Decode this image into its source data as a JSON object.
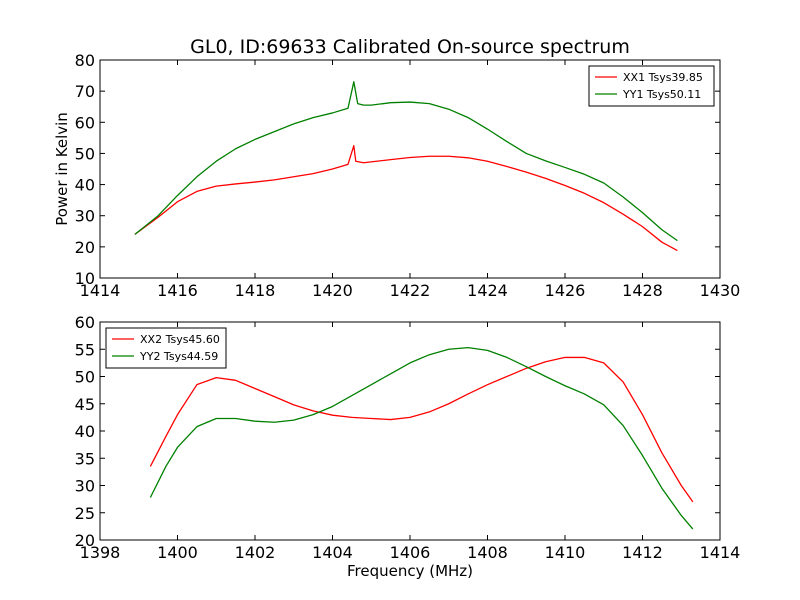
{
  "figure": {
    "title": "GL0, ID:69633 Calibrated On-source spectrum",
    "xlabel": "Frequency (MHz)",
    "ylabel": "Power in Kelvin"
  },
  "chart_data": [
    {
      "type": "line",
      "title": "GL0, ID:69633 Calibrated On-source spectrum",
      "xlabel": "",
      "ylabel": "Power in Kelvin",
      "xlim": [
        1414,
        1430
      ],
      "ylim": [
        10,
        80
      ],
      "xticks": [
        1414,
        1416,
        1418,
        1420,
        1422,
        1424,
        1426,
        1428,
        1430
      ],
      "yticks": [
        10,
        20,
        30,
        40,
        50,
        60,
        70,
        80
      ],
      "legend_position": "top-right",
      "grid": false,
      "series": [
        {
          "name": "XX1 Tsys39.85",
          "color": "#ff0000",
          "x": [
            1414.9,
            1415.5,
            1416.0,
            1416.5,
            1417.0,
            1417.5,
            1418.0,
            1418.5,
            1419.0,
            1419.5,
            1420.0,
            1420.4,
            1420.55,
            1420.6,
            1420.8,
            1421.0,
            1421.5,
            1422.0,
            1422.5,
            1423.0,
            1423.5,
            1424.0,
            1424.5,
            1425.0,
            1425.5,
            1426.0,
            1426.5,
            1427.0,
            1427.5,
            1428.0,
            1428.5,
            1428.9
          ],
          "y": [
            24,
            29.5,
            34.5,
            37.8,
            39.5,
            40.2,
            40.8,
            41.5,
            42.5,
            43.5,
            45,
            46.5,
            52.5,
            47.5,
            47,
            47.3,
            48,
            48.7,
            49.1,
            49.1,
            48.6,
            47.5,
            45.8,
            44,
            42,
            39.7,
            37.2,
            34.2,
            30.5,
            26.5,
            21.5,
            18.8
          ]
        },
        {
          "name": "YY1 Tsys50.11",
          "color": "#008000",
          "x": [
            1414.9,
            1415.5,
            1416.0,
            1416.5,
            1417.0,
            1417.5,
            1418.0,
            1418.5,
            1419.0,
            1419.5,
            1420.0,
            1420.4,
            1420.55,
            1420.65,
            1420.8,
            1421.0,
            1421.5,
            1422.0,
            1422.5,
            1423.0,
            1423.5,
            1424.0,
            1424.5,
            1425.0,
            1425.5,
            1426.0,
            1426.5,
            1427.0,
            1427.5,
            1428.0,
            1428.5,
            1428.9
          ],
          "y": [
            24,
            30,
            36.5,
            42.5,
            47.5,
            51.5,
            54.5,
            57,
            59.5,
            61.5,
            63,
            64.5,
            73,
            66,
            65.5,
            65.5,
            66.3,
            66.5,
            66,
            64.2,
            61.5,
            57.8,
            53.8,
            50,
            47.6,
            45.5,
            43.3,
            40.5,
            36,
            31,
            25.5,
            22
          ]
        }
      ]
    },
    {
      "type": "line",
      "title": "",
      "xlabel": "Frequency (MHz)",
      "ylabel": "",
      "xlim": [
        1398,
        1414
      ],
      "ylim": [
        20,
        60
      ],
      "xticks": [
        1398,
        1400,
        1402,
        1404,
        1406,
        1408,
        1410,
        1412,
        1414
      ],
      "yticks": [
        20,
        25,
        30,
        35,
        40,
        45,
        50,
        55,
        60
      ],
      "legend_position": "top-left",
      "grid": false,
      "series": [
        {
          "name": "XX2 Tsys45.60",
          "color": "#ff0000",
          "x": [
            1399.3,
            1399.7,
            1400.0,
            1400.5,
            1401.0,
            1401.5,
            1402.0,
            1402.5,
            1403.0,
            1403.5,
            1404.0,
            1404.5,
            1405.0,
            1405.5,
            1406.0,
            1406.5,
            1407.0,
            1407.5,
            1408.0,
            1408.5,
            1409.0,
            1409.5,
            1410.0,
            1410.5,
            1411.0,
            1411.5,
            1412.0,
            1412.5,
            1413.0,
            1413.3
          ],
          "y": [
            33.5,
            39,
            43,
            48.5,
            49.8,
            49.3,
            47.8,
            46.3,
            44.8,
            43.7,
            42.9,
            42.5,
            42.3,
            42.1,
            42.5,
            43.5,
            45,
            46.8,
            48.5,
            50,
            51.5,
            52.7,
            53.5,
            53.5,
            52.5,
            49,
            43,
            36,
            30,
            27
          ]
        },
        {
          "name": "YY2 Tsys44.59",
          "color": "#008000",
          "x": [
            1399.3,
            1399.7,
            1400.0,
            1400.5,
            1401.0,
            1401.5,
            1402.0,
            1402.5,
            1403.0,
            1403.5,
            1404.0,
            1404.5,
            1405.0,
            1405.5,
            1406.0,
            1406.5,
            1407.0,
            1407.5,
            1408.0,
            1408.5,
            1409.0,
            1409.5,
            1410.0,
            1410.5,
            1411.0,
            1411.5,
            1412.0,
            1412.5,
            1413.0,
            1413.3
          ],
          "y": [
            27.8,
            33.5,
            37,
            40.8,
            42.3,
            42.3,
            41.8,
            41.6,
            42,
            43,
            44.5,
            46.5,
            48.5,
            50.5,
            52.5,
            54,
            55,
            55.3,
            54.8,
            53.5,
            51.8,
            50,
            48.3,
            46.8,
            44.8,
            41,
            35.5,
            29.5,
            24.5,
            22
          ]
        }
      ]
    }
  ]
}
